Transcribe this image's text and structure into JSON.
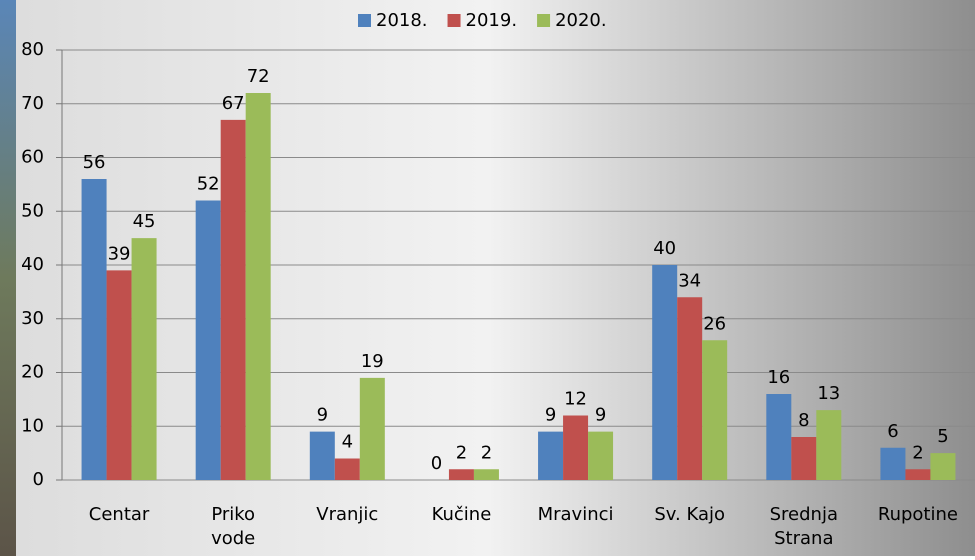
{
  "chart_data": {
    "type": "bar",
    "categories": [
      "Centar",
      "Priko vode",
      "Vranjic",
      "Kučine",
      "Mravinci",
      "Sv. Kajo",
      "Srednja Strana",
      "Rupotine"
    ],
    "series": [
      {
        "name": "2018.",
        "color": "#4f81bd",
        "values": [
          56,
          52,
          9,
          0,
          9,
          40,
          16,
          6
        ]
      },
      {
        "name": "2019.",
        "color": "#c0504d",
        "values": [
          39,
          67,
          4,
          2,
          12,
          34,
          8,
          2
        ]
      },
      {
        "name": "2020.",
        "color": "#9bbb59",
        "values": [
          45,
          72,
          19,
          2,
          9,
          26,
          13,
          5
        ]
      }
    ],
    "ylim": [
      0,
      80
    ],
    "yticks": [
      0,
      10,
      20,
      30,
      40,
      50,
      60,
      70,
      80
    ],
    "grid": true,
    "legend": "top"
  }
}
